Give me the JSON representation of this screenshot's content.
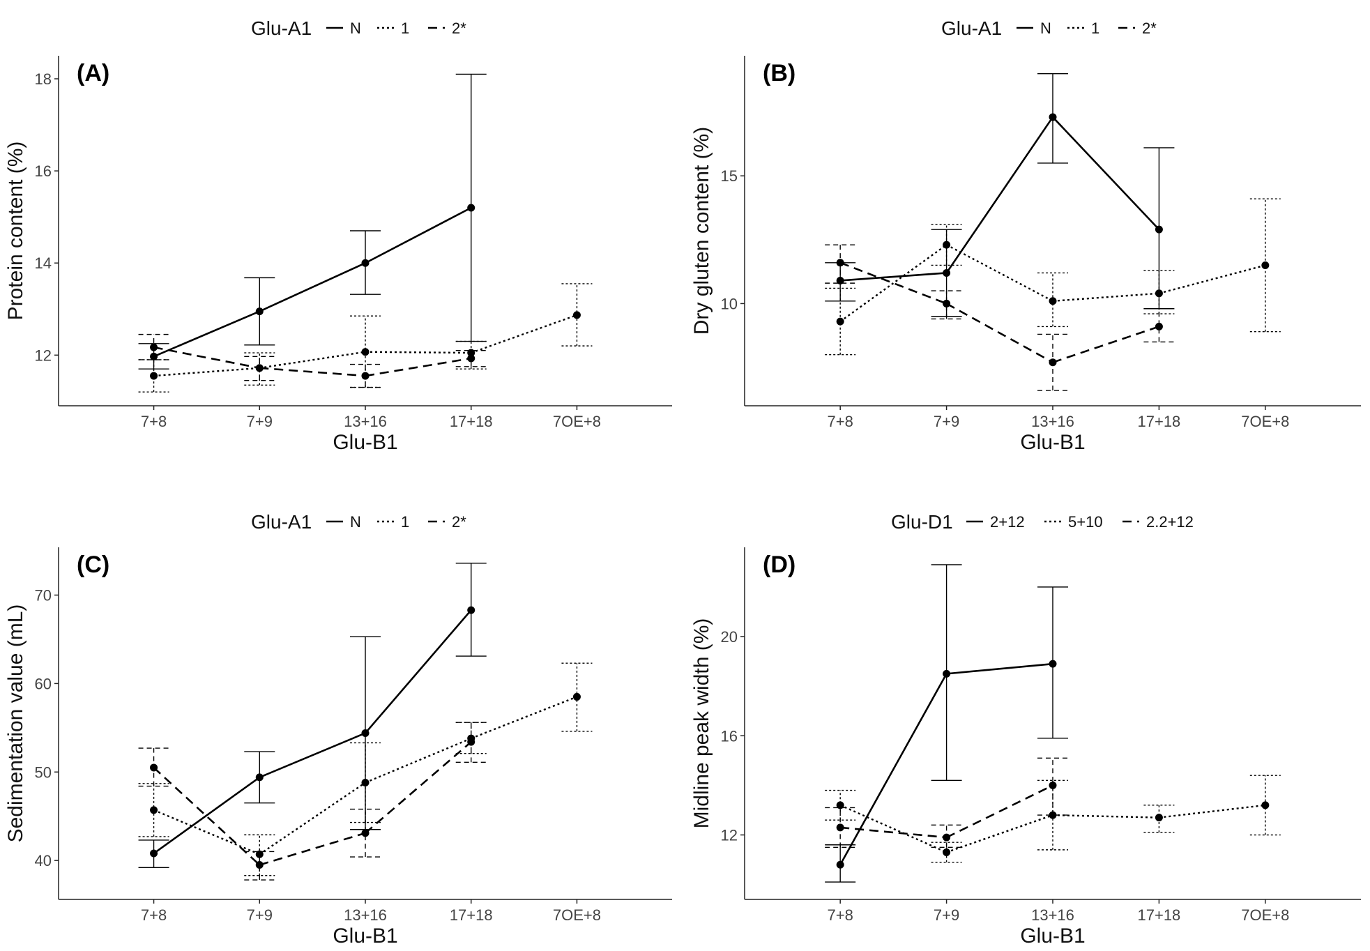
{
  "figure": {
    "panels": [
      {
        "tag": "(A)",
        "legend_title": "Glu-A1",
        "legend_labels": [
          "N",
          "1",
          "2*"
        ],
        "xlabel": "Glu-B1",
        "ylabel": "Protein content (%)"
      },
      {
        "tag": "(B)",
        "legend_title": "Glu-A1",
        "legend_labels": [
          "N",
          "1",
          "2*"
        ],
        "xlabel": "Glu-B1",
        "ylabel": "Dry gluten content (%)"
      },
      {
        "tag": "(C)",
        "legend_title": "Glu-A1",
        "legend_labels": [
          "N",
          "1",
          "2*"
        ],
        "xlabel": "Glu-B1",
        "ylabel": "Sedimentation value (mL)"
      },
      {
        "tag": "(D)",
        "legend_title": "Glu-D1",
        "legend_labels": [
          "2+12",
          "5+10",
          "2.2+12"
        ],
        "xlabel": "Glu-B1",
        "ylabel": "Midline peak width (%)"
      }
    ]
  },
  "chart_data": [
    {
      "type": "line",
      "panel": "(A)",
      "title": "",
      "xlabel": "Glu-B1",
      "ylabel": "Protein content (%)",
      "categories": [
        "7+8",
        "7+9",
        "13+16",
        "17+18",
        "7OE+8"
      ],
      "ylim": [
        10.9,
        18.5
      ],
      "yticks": [
        12,
        14,
        16,
        18
      ],
      "legend_title": "Glu-A1",
      "legend_position": "top",
      "series": [
        {
          "name": "N",
          "style": "solid",
          "values": [
            11.97,
            12.95,
            14.0,
            15.2,
            null
          ],
          "err_low": [
            11.7,
            12.22,
            13.32,
            12.3,
            null
          ],
          "err_high": [
            12.25,
            13.68,
            14.7,
            18.1,
            null
          ]
        },
        {
          "name": "1",
          "style": "dotted",
          "values": [
            11.55,
            11.72,
            12.07,
            12.05,
            12.87
          ],
          "err_low": [
            11.2,
            11.35,
            11.3,
            11.7,
            12.2
          ],
          "err_high": [
            11.9,
            12.05,
            12.85,
            12.3,
            13.55
          ]
        },
        {
          "name": "2*",
          "style": "dashed",
          "values": [
            12.17,
            11.72,
            11.55,
            11.93,
            null
          ],
          "err_low": [
            11.9,
            11.45,
            11.3,
            11.75,
            null
          ],
          "err_high": [
            12.45,
            11.97,
            11.8,
            12.1,
            null
          ]
        }
      ]
    },
    {
      "type": "line",
      "panel": "(B)",
      "title": "",
      "xlabel": "Glu-B1",
      "ylabel": "Dry gluten content (%)",
      "categories": [
        "7+8",
        "7+9",
        "13+16",
        "17+18",
        "7OE+8"
      ],
      "ylim": [
        6.0,
        19.7
      ],
      "yticks": [
        10,
        15
      ],
      "legend_title": "Glu-A1",
      "legend_position": "top",
      "series": [
        {
          "name": "N",
          "style": "solid",
          "values": [
            10.9,
            11.2,
            17.3,
            12.9,
            null
          ],
          "err_low": [
            10.1,
            9.5,
            15.5,
            9.8,
            null
          ],
          "err_high": [
            11.6,
            12.9,
            19.0,
            16.1,
            null
          ]
        },
        {
          "name": "1",
          "style": "dotted",
          "values": [
            9.3,
            12.3,
            10.1,
            10.4,
            11.5
          ],
          "err_low": [
            8.0,
            11.5,
            9.1,
            9.6,
            8.9
          ],
          "err_high": [
            10.6,
            13.1,
            11.2,
            11.3,
            14.1
          ]
        },
        {
          "name": "2*",
          "style": "dashed",
          "values": [
            11.6,
            10.0,
            7.7,
            9.1,
            null
          ],
          "err_low": [
            10.8,
            9.4,
            6.6,
            8.5,
            null
          ],
          "err_high": [
            12.3,
            10.5,
            8.8,
            9.8,
            null
          ]
        }
      ]
    },
    {
      "type": "line",
      "panel": "(C)",
      "title": "",
      "xlabel": "Glu-B1",
      "ylabel": "Sedimentation value (mL)",
      "categories": [
        "7+8",
        "7+9",
        "13+16",
        "17+18",
        "7OE+8"
      ],
      "ylim": [
        35.6,
        75.4
      ],
      "yticks": [
        40,
        50,
        60,
        70
      ],
      "legend_title": "Glu-A1",
      "legend_position": "top",
      "series": [
        {
          "name": "N",
          "style": "solid",
          "values": [
            40.8,
            49.4,
            54.4,
            68.3,
            null
          ],
          "err_low": [
            39.2,
            46.5,
            43.5,
            63.1,
            null
          ],
          "err_high": [
            42.3,
            52.3,
            65.3,
            73.6,
            null
          ]
        },
        {
          "name": "1",
          "style": "dotted",
          "values": [
            45.7,
            40.7,
            48.8,
            53.8,
            58.5
          ],
          "err_low": [
            42.7,
            38.3,
            44.3,
            52.1,
            54.6
          ],
          "err_high": [
            48.7,
            42.9,
            53.3,
            55.6,
            62.3
          ]
        },
        {
          "name": "2*",
          "style": "dashed",
          "values": [
            50.5,
            39.5,
            43.1,
            53.4,
            null
          ],
          "err_low": [
            48.4,
            37.8,
            40.4,
            51.1,
            null
          ],
          "err_high": [
            52.7,
            41.0,
            45.8,
            55.6,
            null
          ]
        }
      ]
    },
    {
      "type": "line",
      "panel": "(D)",
      "title": "",
      "xlabel": "Glu-B1",
      "ylabel": "Midline peak width (%)",
      "categories": [
        "7+8",
        "7+9",
        "13+16",
        "17+18",
        "7OE+8"
      ],
      "ylim": [
        9.4,
        23.6
      ],
      "yticks": [
        12,
        16,
        20
      ],
      "legend_title": "Glu-D1",
      "legend_position": "top",
      "series": [
        {
          "name": "2+12",
          "style": "solid",
          "values": [
            10.8,
            18.5,
            18.9,
            null,
            null
          ],
          "err_low": [
            10.1,
            14.2,
            15.9,
            null,
            null
          ],
          "err_high": [
            11.6,
            22.9,
            22.0,
            null,
            null
          ]
        },
        {
          "name": "5+10",
          "style": "dotted",
          "values": [
            13.2,
            11.3,
            12.8,
            12.7,
            13.2
          ],
          "err_low": [
            12.6,
            10.9,
            11.4,
            12.1,
            12.0
          ],
          "err_high": [
            13.8,
            11.7,
            14.2,
            13.2,
            14.4
          ]
        },
        {
          "name": "2.2+12",
          "style": "dashed",
          "values": [
            12.3,
            11.9,
            14.0,
            null,
            null
          ],
          "err_low": [
            11.5,
            11.5,
            12.8,
            null,
            null
          ],
          "err_high": [
            13.1,
            12.4,
            15.1,
            null,
            null
          ]
        }
      ]
    }
  ]
}
